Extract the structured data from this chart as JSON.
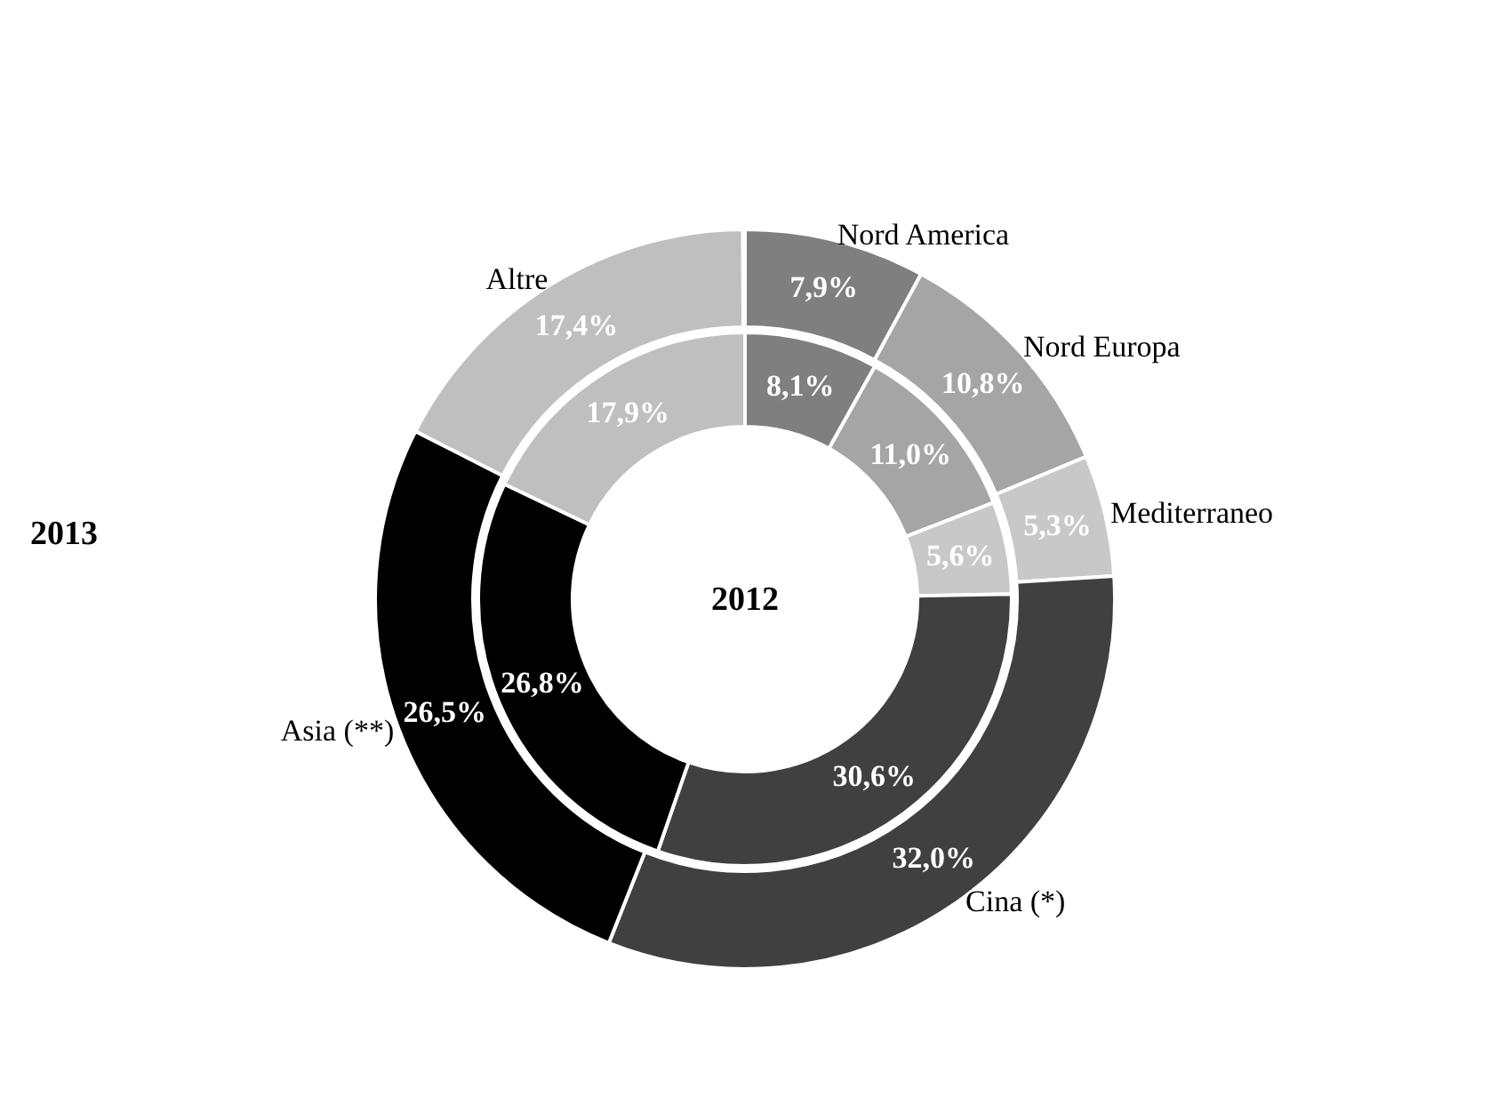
{
  "chart_data": {
    "type": "donut",
    "categories": [
      "Nord America",
      "Nord Europa",
      "Mediterraneo",
      "Cina (*)",
      "Asia (**)",
      "Altre"
    ],
    "colors": [
      "#7f7f7f",
      "#a5a5a5",
      "#c8c8c8",
      "#404040",
      "#000000",
      "#bfbfbf"
    ],
    "series": [
      {
        "name": "2012",
        "values": [
          8.1,
          11.0,
          5.6,
          30.6,
          26.8,
          17.9
        ],
        "value_labels": [
          "8,1%",
          "11,0%",
          "5,6%",
          "30,6%",
          "26,8%",
          "17,9%"
        ]
      },
      {
        "name": "2013",
        "values": [
          7.9,
          10.8,
          5.3,
          32.0,
          26.5,
          17.4
        ],
        "value_labels": [
          "7,9%",
          "10,8%",
          "5,3%",
          "32,0%",
          "26,5%",
          "17,4%"
        ]
      }
    ]
  }
}
